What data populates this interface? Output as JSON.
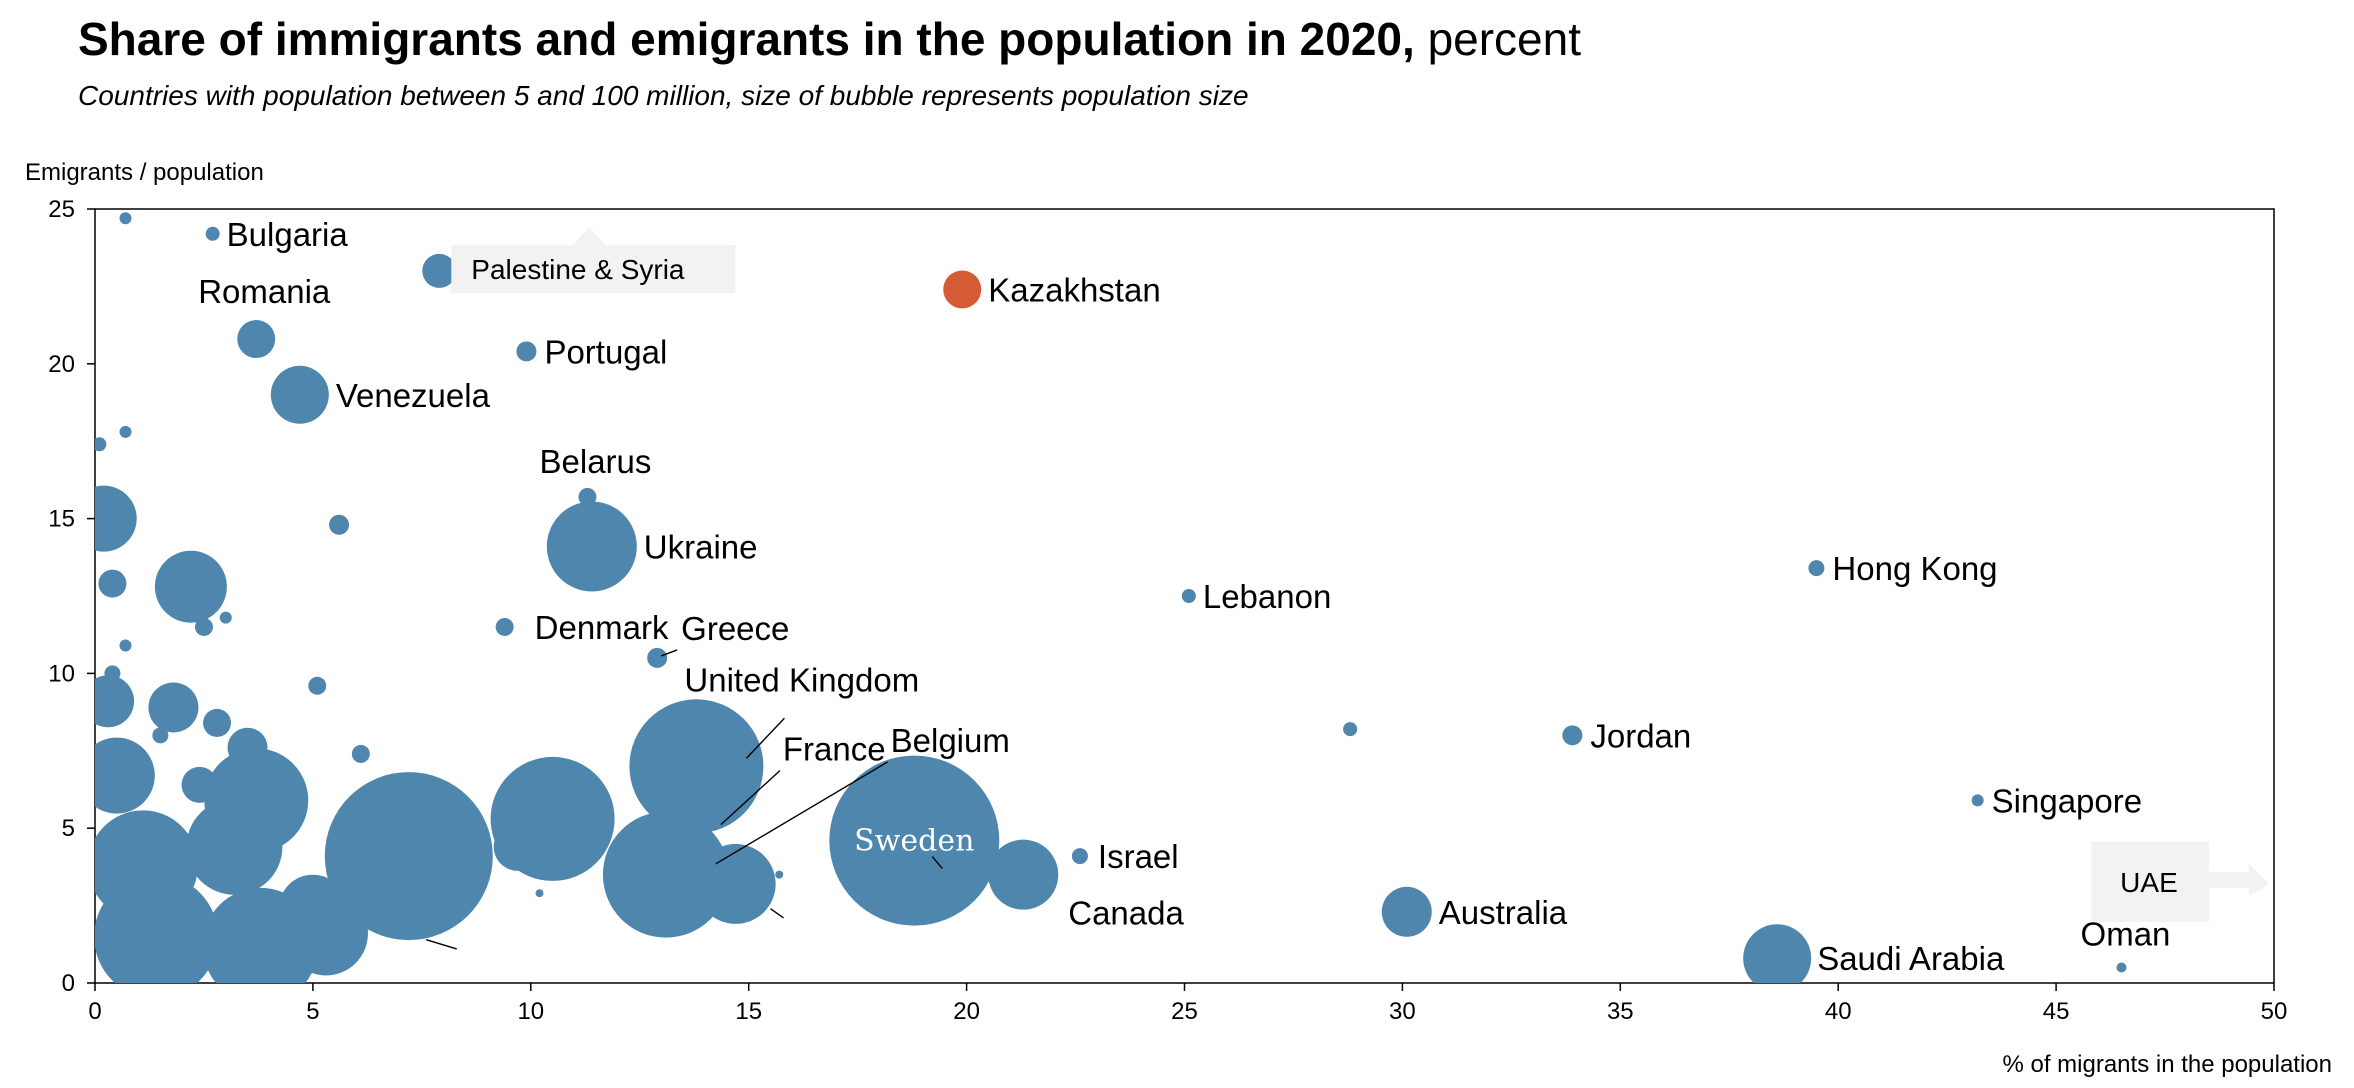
{
  "title_bold": "Share of immigrants and emigrants in the population in 2020,",
  "title_rest": " percent",
  "subtitle": "Countries with population between 5 and 100 million, size of bubble represents population size",
  "colors": {
    "bubble": "#4f86ad",
    "highlight": "#d45b34",
    "axis": "#000000",
    "note_box": "#f2f2f2"
  },
  "chart_data": {
    "type": "scatter",
    "bubble": true,
    "xlabel": "% of migrants in the population",
    "ylabel": "Emigrants / population",
    "xlim": [
      0,
      50
    ],
    "ylim": [
      0,
      25
    ],
    "xticks": [
      "0",
      "5",
      "10",
      "15",
      "20",
      "25",
      "30",
      "35",
      "40",
      "45",
      "50"
    ],
    "yticks": [
      "0",
      "5",
      "10",
      "15",
      "20",
      "25"
    ],
    "grid": false,
    "labeled_points": [
      {
        "name": "Bulgaria",
        "x": 2.7,
        "y": 24.2,
        "size": 7
      },
      {
        "name": "Palestine & Syria",
        "x": 7.9,
        "y": 23.0,
        "size": 17
      },
      {
        "name": "Kazakhstan",
        "x": 19.9,
        "y": 22.4,
        "size": 19,
        "highlight": true
      },
      {
        "name": "Romania",
        "x": 3.7,
        "y": 20.8,
        "size": 19
      },
      {
        "name": "Portugal",
        "x": 9.9,
        "y": 20.4,
        "size": 10
      },
      {
        "name": "Venezuela",
        "x": 4.7,
        "y": 19.0,
        "size": 29
      },
      {
        "name": "Belarus",
        "x": 11.3,
        "y": 15.7,
        "size": 9
      },
      {
        "name": "Ukraine",
        "x": 11.4,
        "y": 14.1,
        "size": 45
      },
      {
        "name": "Hong Kong",
        "x": 39.5,
        "y": 13.4,
        "size": 8
      },
      {
        "name": "Lebanon",
        "x": 25.1,
        "y": 12.5,
        "size": 7
      },
      {
        "name": "Denmark",
        "x": 9.4,
        "y": 11.5,
        "size": 9
      },
      {
        "name": "Greece",
        "x": 12.9,
        "y": 10.5,
        "size": 10
      },
      {
        "name": "United Kingdom",
        "x": 13.8,
        "y": 7.0,
        "size": 67
      },
      {
        "name": "France",
        "x": 13.1,
        "y": 3.5,
        "size": 63
      },
      {
        "name": "Belgium",
        "x": 14.7,
        "y": 3.2,
        "size": 40
      },
      {
        "name": "Sweden",
        "x": 18.8,
        "y": 4.6,
        "size": 85
      },
      {
        "name": "Canada",
        "x": 21.3,
        "y": 3.5,
        "size": 35
      },
      {
        "name": "Israel",
        "x": 22.6,
        "y": 4.1,
        "size": 8
      },
      {
        "name": "Jordan",
        "x": 33.9,
        "y": 8.0,
        "size": 10
      },
      {
        "name": "Singapore",
        "x": 43.2,
        "y": 5.9,
        "size": 6
      },
      {
        "name": "Australia",
        "x": 30.1,
        "y": 2.3,
        "size": 25
      },
      {
        "name": "Saudi Arabia",
        "x": 38.6,
        "y": 0.8,
        "size": 34
      },
      {
        "name": "Oman",
        "x": 46.5,
        "y": 0.5,
        "size": 5
      },
      {
        "name": "UAE",
        "x": 50.5,
        "y": 3.2,
        "size": 0,
        "offscale": true
      }
    ],
    "unlabeled_points": [
      {
        "x": 0.7,
        "y": 24.7,
        "size": 6
      },
      {
        "x": 0.7,
        "y": 17.8,
        "size": 6
      },
      {
        "x": 0.1,
        "y": 17.4,
        "size": 7
      },
      {
        "x": 0.2,
        "y": 15.0,
        "size": 33
      },
      {
        "x": 5.6,
        "y": 14.8,
        "size": 10
      },
      {
        "x": 0.4,
        "y": 12.9,
        "size": 14
      },
      {
        "x": 2.2,
        "y": 12.8,
        "size": 36
      },
      {
        "x": 3.0,
        "y": 11.8,
        "size": 6
      },
      {
        "x": 2.5,
        "y": 11.5,
        "size": 9
      },
      {
        "x": 0.7,
        "y": 10.9,
        "size": 6
      },
      {
        "x": 0.4,
        "y": 10.0,
        "size": 8
      },
      {
        "x": 0.3,
        "y": 9.1,
        "size": 26
      },
      {
        "x": 1.8,
        "y": 8.9,
        "size": 25
      },
      {
        "x": 5.1,
        "y": 9.6,
        "size": 9
      },
      {
        "x": 1.5,
        "y": 8.0,
        "size": 8
      },
      {
        "x": 2.8,
        "y": 8.4,
        "size": 14
      },
      {
        "x": 3.5,
        "y": 7.6,
        "size": 20
      },
      {
        "x": 0.5,
        "y": 6.7,
        "size": 38
      },
      {
        "x": 6.1,
        "y": 7.4,
        "size": 9
      },
      {
        "x": 2.4,
        "y": 6.4,
        "size": 18
      },
      {
        "x": 3.7,
        "y": 5.9,
        "size": 52
      },
      {
        "x": 3.2,
        "y": 4.4,
        "size": 48
      },
      {
        "x": 1.1,
        "y": 3.8,
        "size": 55
      },
      {
        "x": 7.2,
        "y": 4.1,
        "size": 84
      },
      {
        "x": 10.5,
        "y": 5.3,
        "size": 62
      },
      {
        "x": 9.7,
        "y": 4.4,
        "size": 24
      },
      {
        "x": 5.0,
        "y": 2.4,
        "size": 34
      },
      {
        "x": 5.3,
        "y": 1.6,
        "size": 42
      },
      {
        "x": 3.8,
        "y": 1.2,
        "size": 58
      },
      {
        "x": 1.4,
        "y": 1.5,
        "size": 62
      },
      {
        "x": 28.8,
        "y": 8.2,
        "size": 7
      },
      {
        "x": 15.7,
        "y": 3.5,
        "size": 4
      },
      {
        "x": 10.2,
        "y": 2.9,
        "size": 4
      }
    ]
  }
}
